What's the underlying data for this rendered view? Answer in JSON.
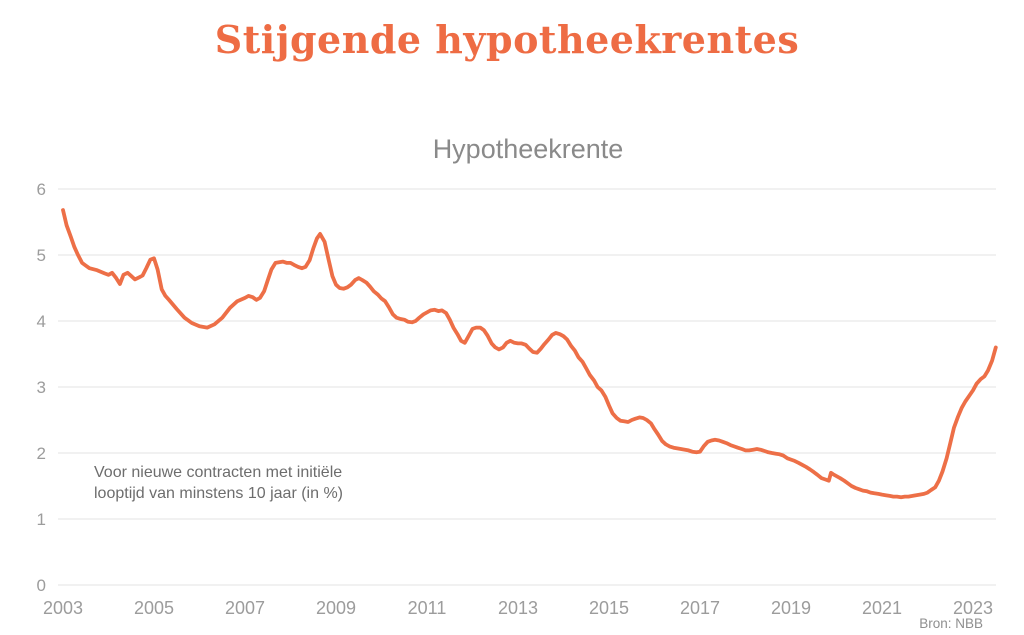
{
  "header": {
    "title": "Stijgende hypotheekrentes"
  },
  "footer": {
    "source": "Bron: NBB"
  },
  "colors": {
    "background": "#FFFFFF",
    "title": "#EE6C44",
    "line": "#ED6F47",
    "grid": "#E3E3E3",
    "tick_label": "#9C9C9C",
    "subtitle": "#8A8A8A",
    "annotation": "#6D6D6D",
    "source": "#8F8F8F"
  },
  "chart_data": {
    "type": "line",
    "title": "Hypotheekrente",
    "annotation_line1": "Voor nieuwe contracten met initiële",
    "annotation_line2": "looptijd van minstens 10 jaar (in %)",
    "unit": "%",
    "xlabel": "",
    "ylabel": "",
    "xlim": [
      2003,
      2023.5
    ],
    "ylim": [
      0,
      6
    ],
    "x_ticks": [
      2003,
      2005,
      2007,
      2009,
      2011,
      2013,
      2015,
      2017,
      2019,
      2021,
      2023
    ],
    "y_ticks": [
      0,
      1,
      2,
      3,
      4,
      5,
      6
    ],
    "grid": "horizontal",
    "legend": "none",
    "series": [
      {
        "name": "Hypotheekrente",
        "points": [
          [
            2003.0,
            5.68
          ],
          [
            2003.08,
            5.45
          ],
          [
            2003.17,
            5.28
          ],
          [
            2003.25,
            5.12
          ],
          [
            2003.33,
            5.0
          ],
          [
            2003.42,
            4.88
          ],
          [
            2003.5,
            4.84
          ],
          [
            2003.58,
            4.8
          ],
          [
            2003.75,
            4.77
          ],
          [
            2003.92,
            4.72
          ],
          [
            2004.0,
            4.7
          ],
          [
            2004.08,
            4.73
          ],
          [
            2004.17,
            4.65
          ],
          [
            2004.25,
            4.56
          ],
          [
            2004.33,
            4.7
          ],
          [
            2004.42,
            4.73
          ],
          [
            2004.5,
            4.68
          ],
          [
            2004.58,
            4.63
          ],
          [
            2004.67,
            4.66
          ],
          [
            2004.75,
            4.69
          ],
          [
            2004.83,
            4.8
          ],
          [
            2004.92,
            4.93
          ],
          [
            2005.0,
            4.95
          ],
          [
            2005.08,
            4.78
          ],
          [
            2005.17,
            4.48
          ],
          [
            2005.25,
            4.38
          ],
          [
            2005.33,
            4.32
          ],
          [
            2005.5,
            4.18
          ],
          [
            2005.67,
            4.05
          ],
          [
            2005.83,
            3.97
          ],
          [
            2006.0,
            3.92
          ],
          [
            2006.17,
            3.9
          ],
          [
            2006.33,
            3.95
          ],
          [
            2006.5,
            4.05
          ],
          [
            2006.67,
            4.2
          ],
          [
            2006.83,
            4.3
          ],
          [
            2007.0,
            4.35
          ],
          [
            2007.08,
            4.38
          ],
          [
            2007.17,
            4.36
          ],
          [
            2007.25,
            4.32
          ],
          [
            2007.33,
            4.35
          ],
          [
            2007.42,
            4.45
          ],
          [
            2007.5,
            4.62
          ],
          [
            2007.58,
            4.78
          ],
          [
            2007.67,
            4.88
          ],
          [
            2007.83,
            4.9
          ],
          [
            2007.92,
            4.88
          ],
          [
            2008.0,
            4.88
          ],
          [
            2008.08,
            4.85
          ],
          [
            2008.17,
            4.82
          ],
          [
            2008.25,
            4.8
          ],
          [
            2008.33,
            4.82
          ],
          [
            2008.42,
            4.92
          ],
          [
            2008.5,
            5.1
          ],
          [
            2008.58,
            5.25
          ],
          [
            2008.65,
            5.32
          ],
          [
            2008.75,
            5.2
          ],
          [
            2008.83,
            4.95
          ],
          [
            2008.92,
            4.68
          ],
          [
            2009.0,
            4.55
          ],
          [
            2009.08,
            4.5
          ],
          [
            2009.17,
            4.49
          ],
          [
            2009.25,
            4.51
          ],
          [
            2009.33,
            4.55
          ],
          [
            2009.42,
            4.62
          ],
          [
            2009.5,
            4.65
          ],
          [
            2009.58,
            4.62
          ],
          [
            2009.67,
            4.58
          ],
          [
            2009.75,
            4.52
          ],
          [
            2009.83,
            4.45
          ],
          [
            2009.92,
            4.4
          ],
          [
            2010.0,
            4.34
          ],
          [
            2010.08,
            4.3
          ],
          [
            2010.17,
            4.2
          ],
          [
            2010.25,
            4.1
          ],
          [
            2010.33,
            4.05
          ],
          [
            2010.42,
            4.03
          ],
          [
            2010.5,
            4.02
          ],
          [
            2010.58,
            3.99
          ],
          [
            2010.67,
            3.98
          ],
          [
            2010.75,
            4.0
          ],
          [
            2010.83,
            4.05
          ],
          [
            2010.92,
            4.1
          ],
          [
            2011.0,
            4.13
          ],
          [
            2011.08,
            4.16
          ],
          [
            2011.17,
            4.17
          ],
          [
            2011.25,
            4.15
          ],
          [
            2011.33,
            4.16
          ],
          [
            2011.42,
            4.12
          ],
          [
            2011.5,
            4.02
          ],
          [
            2011.58,
            3.9
          ],
          [
            2011.67,
            3.8
          ],
          [
            2011.75,
            3.7
          ],
          [
            2011.83,
            3.67
          ],
          [
            2011.92,
            3.78
          ],
          [
            2012.0,
            3.88
          ],
          [
            2012.08,
            3.9
          ],
          [
            2012.17,
            3.9
          ],
          [
            2012.25,
            3.86
          ],
          [
            2012.33,
            3.78
          ],
          [
            2012.42,
            3.66
          ],
          [
            2012.5,
            3.6
          ],
          [
            2012.58,
            3.57
          ],
          [
            2012.67,
            3.6
          ],
          [
            2012.75,
            3.67
          ],
          [
            2012.83,
            3.7
          ],
          [
            2012.92,
            3.67
          ],
          [
            2013.0,
            3.66
          ],
          [
            2013.08,
            3.66
          ],
          [
            2013.17,
            3.64
          ],
          [
            2013.25,
            3.58
          ],
          [
            2013.33,
            3.53
          ],
          [
            2013.42,
            3.52
          ],
          [
            2013.5,
            3.58
          ],
          [
            2013.58,
            3.65
          ],
          [
            2013.67,
            3.72
          ],
          [
            2013.75,
            3.79
          ],
          [
            2013.83,
            3.82
          ],
          [
            2013.92,
            3.8
          ],
          [
            2014.0,
            3.77
          ],
          [
            2014.08,
            3.72
          ],
          [
            2014.17,
            3.62
          ],
          [
            2014.25,
            3.55
          ],
          [
            2014.33,
            3.45
          ],
          [
            2014.42,
            3.38
          ],
          [
            2014.5,
            3.28
          ],
          [
            2014.58,
            3.18
          ],
          [
            2014.67,
            3.1
          ],
          [
            2014.75,
            3.0
          ],
          [
            2014.83,
            2.95
          ],
          [
            2014.92,
            2.85
          ],
          [
            2015.0,
            2.72
          ],
          [
            2015.08,
            2.6
          ],
          [
            2015.17,
            2.53
          ],
          [
            2015.25,
            2.49
          ],
          [
            2015.33,
            2.48
          ],
          [
            2015.42,
            2.47
          ],
          [
            2015.5,
            2.5
          ],
          [
            2015.58,
            2.52
          ],
          [
            2015.67,
            2.54
          ],
          [
            2015.75,
            2.53
          ],
          [
            2015.83,
            2.5
          ],
          [
            2015.92,
            2.45
          ],
          [
            2016.0,
            2.36
          ],
          [
            2016.08,
            2.28
          ],
          [
            2016.17,
            2.18
          ],
          [
            2016.25,
            2.13
          ],
          [
            2016.33,
            2.1
          ],
          [
            2016.42,
            2.08
          ],
          [
            2016.5,
            2.07
          ],
          [
            2016.58,
            2.06
          ],
          [
            2016.67,
            2.05
          ],
          [
            2016.75,
            2.04
          ],
          [
            2016.83,
            2.02
          ],
          [
            2016.92,
            2.01
          ],
          [
            2017.0,
            2.02
          ],
          [
            2017.08,
            2.1
          ],
          [
            2017.17,
            2.17
          ],
          [
            2017.25,
            2.19
          ],
          [
            2017.33,
            2.2
          ],
          [
            2017.42,
            2.19
          ],
          [
            2017.5,
            2.17
          ],
          [
            2017.58,
            2.15
          ],
          [
            2017.67,
            2.12
          ],
          [
            2017.75,
            2.1
          ],
          [
            2017.83,
            2.08
          ],
          [
            2017.92,
            2.06
          ],
          [
            2018.0,
            2.04
          ],
          [
            2018.08,
            2.04
          ],
          [
            2018.17,
            2.05
          ],
          [
            2018.25,
            2.06
          ],
          [
            2018.33,
            2.05
          ],
          [
            2018.42,
            2.03
          ],
          [
            2018.5,
            2.01
          ],
          [
            2018.58,
            2.0
          ],
          [
            2018.67,
            1.99
          ],
          [
            2018.75,
            1.98
          ],
          [
            2018.83,
            1.96
          ],
          [
            2018.92,
            1.92
          ],
          [
            2019.0,
            1.9
          ],
          [
            2019.08,
            1.88
          ],
          [
            2019.17,
            1.85
          ],
          [
            2019.25,
            1.82
          ],
          [
            2019.33,
            1.79
          ],
          [
            2019.42,
            1.75
          ],
          [
            2019.5,
            1.71
          ],
          [
            2019.58,
            1.67
          ],
          [
            2019.67,
            1.62
          ],
          [
            2019.75,
            1.6
          ],
          [
            2019.83,
            1.58
          ],
          [
            2019.88,
            1.7
          ],
          [
            2019.92,
            1.68
          ],
          [
            2020.0,
            1.65
          ],
          [
            2020.08,
            1.62
          ],
          [
            2020.17,
            1.58
          ],
          [
            2020.25,
            1.54
          ],
          [
            2020.33,
            1.5
          ],
          [
            2020.42,
            1.47
          ],
          [
            2020.5,
            1.45
          ],
          [
            2020.58,
            1.43
          ],
          [
            2020.67,
            1.42
          ],
          [
            2020.75,
            1.4
          ],
          [
            2020.83,
            1.39
          ],
          [
            2020.92,
            1.38
          ],
          [
            2021.0,
            1.37
          ],
          [
            2021.08,
            1.36
          ],
          [
            2021.17,
            1.35
          ],
          [
            2021.25,
            1.34
          ],
          [
            2021.33,
            1.34
          ],
          [
            2021.42,
            1.33
          ],
          [
            2021.5,
            1.34
          ],
          [
            2021.58,
            1.34
          ],
          [
            2021.67,
            1.35
          ],
          [
            2021.75,
            1.36
          ],
          [
            2021.83,
            1.37
          ],
          [
            2021.92,
            1.38
          ],
          [
            2022.0,
            1.4
          ],
          [
            2022.08,
            1.44
          ],
          [
            2022.17,
            1.48
          ],
          [
            2022.25,
            1.58
          ],
          [
            2022.33,
            1.72
          ],
          [
            2022.42,
            1.92
          ],
          [
            2022.5,
            2.15
          ],
          [
            2022.58,
            2.38
          ],
          [
            2022.67,
            2.55
          ],
          [
            2022.75,
            2.68
          ],
          [
            2022.83,
            2.78
          ],
          [
            2022.92,
            2.87
          ],
          [
            2023.0,
            2.95
          ],
          [
            2023.08,
            3.05
          ],
          [
            2023.17,
            3.12
          ],
          [
            2023.25,
            3.16
          ],
          [
            2023.33,
            3.25
          ],
          [
            2023.42,
            3.4
          ],
          [
            2023.5,
            3.6
          ]
        ]
      }
    ]
  }
}
